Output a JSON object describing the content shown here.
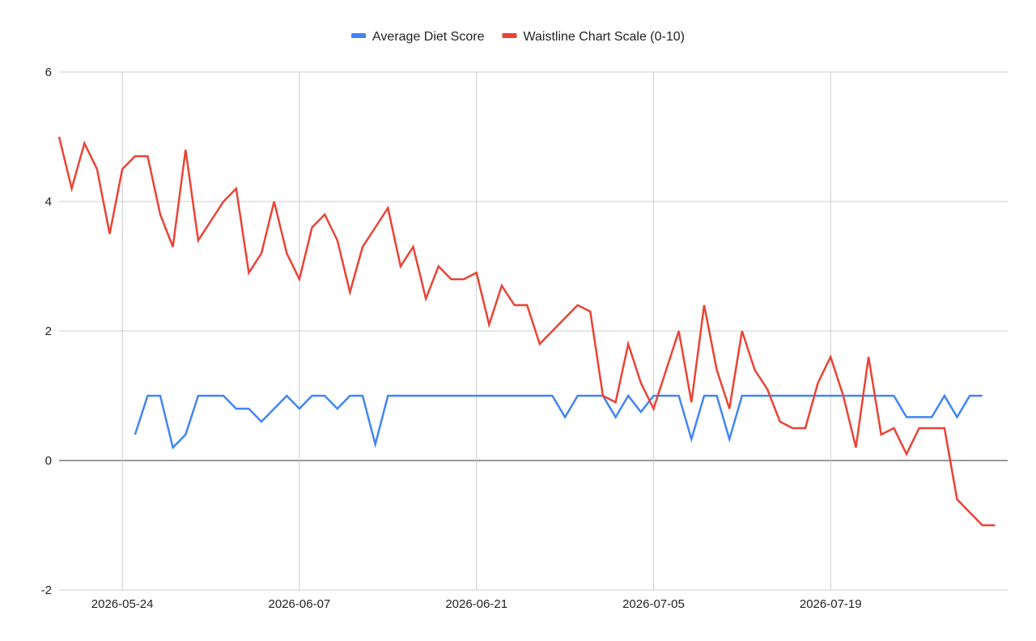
{
  "chart_data": {
    "type": "line",
    "x_start": "2026-05-19",
    "x_end": "2026-08-02",
    "xticks": [
      "2026-05-24",
      "2026-06-07",
      "2026-06-21",
      "2026-07-05",
      "2026-07-19"
    ],
    "yticks": [
      -2,
      0,
      2,
      4,
      6
    ],
    "ylim": [
      -2,
      6
    ],
    "grid": true,
    "legend_position": "top",
    "series": [
      {
        "name": "Average Diet Score",
        "color": "#4285f4",
        "points": [
          [
            "2026-05-25",
            0.4
          ],
          [
            "2026-05-26",
            1.0
          ],
          [
            "2026-05-27",
            1.0
          ],
          [
            "2026-05-28",
            0.2
          ],
          [
            "2026-05-29",
            0.4
          ],
          [
            "2026-05-30",
            1.0
          ],
          [
            "2026-05-31",
            1.0
          ],
          [
            "2026-06-01",
            1.0
          ],
          [
            "2026-06-02",
            0.8
          ],
          [
            "2026-06-03",
            0.8
          ],
          [
            "2026-06-04",
            0.6
          ],
          [
            "2026-06-05",
            0.8
          ],
          [
            "2026-06-06",
            1.0
          ],
          [
            "2026-06-07",
            0.8
          ],
          [
            "2026-06-08",
            1.0
          ],
          [
            "2026-06-09",
            1.0
          ],
          [
            "2026-06-10",
            0.8
          ],
          [
            "2026-06-11",
            1.0
          ],
          [
            "2026-06-12",
            1.0
          ],
          [
            "2026-06-13",
            0.25
          ],
          [
            "2026-06-14",
            1.0
          ],
          [
            "2026-06-15",
            1.0
          ],
          [
            "2026-06-16",
            1.0
          ],
          [
            "2026-06-17",
            1.0
          ],
          [
            "2026-06-18",
            1.0
          ],
          [
            "2026-06-19",
            1.0
          ],
          [
            "2026-06-20",
            1.0
          ],
          [
            "2026-06-21",
            1.0
          ],
          [
            "2026-06-22",
            1.0
          ],
          [
            "2026-06-23",
            1.0
          ],
          [
            "2026-06-24",
            1.0
          ],
          [
            "2026-06-25",
            1.0
          ],
          [
            "2026-06-26",
            1.0
          ],
          [
            "2026-06-27",
            1.0
          ],
          [
            "2026-06-28",
            0.67
          ],
          [
            "2026-06-29",
            1.0
          ],
          [
            "2026-06-30",
            1.0
          ],
          [
            "2026-07-01",
            1.0
          ],
          [
            "2026-07-02",
            0.67
          ],
          [
            "2026-07-03",
            1.0
          ],
          [
            "2026-07-04",
            0.75
          ],
          [
            "2026-07-05",
            1.0
          ],
          [
            "2026-07-06",
            1.0
          ],
          [
            "2026-07-07",
            1.0
          ],
          [
            "2026-07-08",
            0.33
          ],
          [
            "2026-07-09",
            1.0
          ],
          [
            "2026-07-10",
            1.0
          ],
          [
            "2026-07-11",
            0.33
          ],
          [
            "2026-07-12",
            1.0
          ],
          [
            "2026-07-13",
            1.0
          ],
          [
            "2026-07-14",
            1.0
          ],
          [
            "2026-07-15",
            1.0
          ],
          [
            "2026-07-16",
            1.0
          ],
          [
            "2026-07-17",
            1.0
          ],
          [
            "2026-07-18",
            1.0
          ],
          [
            "2026-07-19",
            1.0
          ],
          [
            "2026-07-20",
            1.0
          ],
          [
            "2026-07-21",
            1.0
          ],
          [
            "2026-07-22",
            1.0
          ],
          [
            "2026-07-23",
            1.0
          ],
          [
            "2026-07-24",
            1.0
          ],
          [
            "2026-07-25",
            0.67
          ],
          [
            "2026-07-26",
            0.67
          ],
          [
            "2026-07-27",
            0.67
          ],
          [
            "2026-07-28",
            1.0
          ],
          [
            "2026-07-29",
            0.67
          ],
          [
            "2026-07-30",
            1.0
          ],
          [
            "2026-07-31",
            1.0
          ]
        ]
      },
      {
        "name": "Waistline Chart Scale (0-10)",
        "color": "#ea4335",
        "points": [
          [
            "2026-05-19",
            5.0
          ],
          [
            "2026-05-20",
            4.2
          ],
          [
            "2026-05-21",
            4.9
          ],
          [
            "2026-05-22",
            4.5
          ],
          [
            "2026-05-23",
            3.5
          ],
          [
            "2026-05-24",
            4.5
          ],
          [
            "2026-05-25",
            4.7
          ],
          [
            "2026-05-26",
            4.7
          ],
          [
            "2026-05-27",
            3.8
          ],
          [
            "2026-05-28",
            3.3
          ],
          [
            "2026-05-29",
            4.8
          ],
          [
            "2026-05-30",
            3.4
          ],
          [
            "2026-05-31",
            3.7
          ],
          [
            "2026-06-01",
            4.0
          ],
          [
            "2026-06-02",
            4.2
          ],
          [
            "2026-06-03",
            2.9
          ],
          [
            "2026-06-04",
            3.2
          ],
          [
            "2026-06-05",
            4.0
          ],
          [
            "2026-06-06",
            3.2
          ],
          [
            "2026-06-07",
            2.8
          ],
          [
            "2026-06-08",
            3.6
          ],
          [
            "2026-06-09",
            3.8
          ],
          [
            "2026-06-10",
            3.4
          ],
          [
            "2026-06-11",
            2.6
          ],
          [
            "2026-06-12",
            3.3
          ],
          [
            "2026-06-13",
            3.6
          ],
          [
            "2026-06-14",
            3.9
          ],
          [
            "2026-06-15",
            3.0
          ],
          [
            "2026-06-16",
            3.3
          ],
          [
            "2026-06-17",
            2.5
          ],
          [
            "2026-06-18",
            3.0
          ],
          [
            "2026-06-19",
            2.8
          ],
          [
            "2026-06-20",
            2.8
          ],
          [
            "2026-06-21",
            2.9
          ],
          [
            "2026-06-22",
            2.1
          ],
          [
            "2026-06-23",
            2.7
          ],
          [
            "2026-06-24",
            2.4
          ],
          [
            "2026-06-25",
            2.4
          ],
          [
            "2026-06-26",
            1.8
          ],
          [
            "2026-06-27",
            2.0
          ],
          [
            "2026-06-28",
            2.2
          ],
          [
            "2026-06-29",
            2.4
          ],
          [
            "2026-06-30",
            2.3
          ],
          [
            "2026-07-01",
            1.0
          ],
          [
            "2026-07-02",
            0.9
          ],
          [
            "2026-07-03",
            1.8
          ],
          [
            "2026-07-04",
            1.2
          ],
          [
            "2026-07-05",
            0.8
          ],
          [
            "2026-07-06",
            1.4
          ],
          [
            "2026-07-07",
            2.0
          ],
          [
            "2026-07-08",
            0.9
          ],
          [
            "2026-07-09",
            2.4
          ],
          [
            "2026-07-10",
            1.4
          ],
          [
            "2026-07-11",
            0.8
          ],
          [
            "2026-07-12",
            2.0
          ],
          [
            "2026-07-13",
            1.4
          ],
          [
            "2026-07-14",
            1.1
          ],
          [
            "2026-07-15",
            0.6
          ],
          [
            "2026-07-16",
            0.5
          ],
          [
            "2026-07-17",
            0.5
          ],
          [
            "2026-07-18",
            1.2
          ],
          [
            "2026-07-19",
            1.6
          ],
          [
            "2026-07-20",
            1.0
          ],
          [
            "2026-07-21",
            0.2
          ],
          [
            "2026-07-22",
            1.6
          ],
          [
            "2026-07-23",
            0.4
          ],
          [
            "2026-07-24",
            0.5
          ],
          [
            "2026-07-25",
            0.1
          ],
          [
            "2026-07-26",
            0.5
          ],
          [
            "2026-07-27",
            0.5
          ],
          [
            "2026-07-28",
            0.5
          ],
          [
            "2026-07-29",
            -0.6
          ],
          [
            "2026-07-30",
            -0.8
          ],
          [
            "2026-07-31",
            -1.0
          ],
          [
            "2026-08-01",
            -1.0
          ]
        ]
      }
    ]
  }
}
